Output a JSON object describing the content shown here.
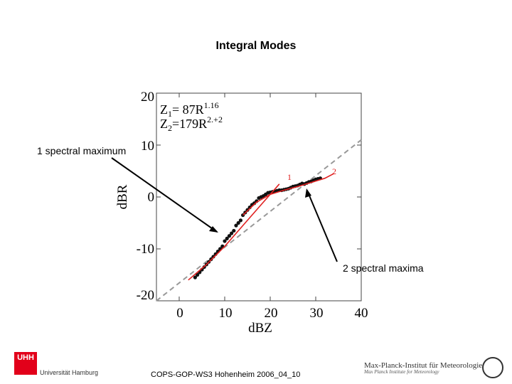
{
  "slide": {
    "title": "Integral Modes",
    "footer": "COPS-GOP-WS3 Hohenheim 2006_04_10"
  },
  "annotations": {
    "left_callout": "1 spectral maximum",
    "right_callout": "2 spectral maxima"
  },
  "logos": {
    "uhh_box": "UHH",
    "uhh_name": "Universität Hamburg",
    "mpi_name": "Max-Planck-Institut für Meteorologie",
    "mpi_sub": "Max Planck Institute for Meteorology"
  },
  "chart_data": {
    "type": "scatter",
    "xlabel": "dBZ",
    "ylabel": "dBR",
    "xlim": [
      -5,
      40
    ],
    "ylim": [
      -20,
      20
    ],
    "xticks": [
      "0",
      "10",
      "20",
      "30",
      "40"
    ],
    "yticks": [
      "20",
      "10",
      "0",
      "-10",
      "-20"
    ],
    "grid": false,
    "legend": {
      "line1": {
        "prefix": "Z",
        "sub": "1",
        "eq": "= 87R",
        "exp": "1.16"
      },
      "line2": {
        "prefix": "Z",
        "sub": "2",
        "eq": "=179R",
        "exp": "2.+2"
      }
    },
    "curve_labels": [
      "1",
      "2"
    ],
    "reference_line": {
      "x": [
        -5,
        40
      ],
      "y": [
        -20,
        11
      ]
    },
    "fit_1": {
      "x": [
        2,
        6,
        10,
        14,
        18,
        22
      ],
      "y": [
        -16,
        -13,
        -9.5,
        -5.5,
        -1.5,
        2.5
      ]
    },
    "fit_2": {
      "x": [
        14,
        17,
        20,
        23,
        26,
        29,
        32,
        34
      ],
      "y": [
        -3.5,
        -1,
        0.5,
        1.3,
        2,
        2.8,
        3.6,
        4.5
      ]
    },
    "series": [
      {
        "x": [
          3.5,
          4,
          4.5,
          5,
          5.5,
          6,
          6.5,
          7,
          7.5,
          8,
          8.5,
          9,
          9.5,
          10,
          10.5,
          11,
          11.5,
          12,
          12.5,
          13,
          13.5,
          14,
          14.5,
          15,
          15.5,
          16,
          16.5,
          17,
          17.5,
          18,
          18.5,
          19,
          19.5,
          20,
          20.5,
          21,
          21.5,
          22,
          22.5,
          23,
          23.5,
          24,
          24.5,
          25,
          25.5,
          26,
          26.5,
          27,
          27.5,
          28,
          28.5,
          29,
          29.5,
          30,
          30.5,
          31
        ],
        "y": [
          -15.5,
          -15,
          -14.5,
          -14,
          -13.5,
          -13,
          -12.5,
          -12,
          -11.5,
          -11,
          -10.5,
          -10,
          -9.5,
          -8.5,
          -8,
          -7.5,
          -7,
          -6.5,
          -5.5,
          -5,
          -4.5,
          -3.5,
          -3,
          -2.5,
          -2,
          -1.5,
          -1.2,
          -0.8,
          -0.2,
          0,
          0.2,
          0.5,
          0.8,
          0.9,
          1,
          1.1,
          1.2,
          1.3,
          1.3,
          1.4,
          1.5,
          1.6,
          1.8,
          2,
          2.1,
          2.2,
          2.4,
          2.6,
          2.5,
          2.7,
          2.9,
          3,
          3.2,
          3.4,
          3.5,
          3.6
        ]
      }
    ]
  }
}
